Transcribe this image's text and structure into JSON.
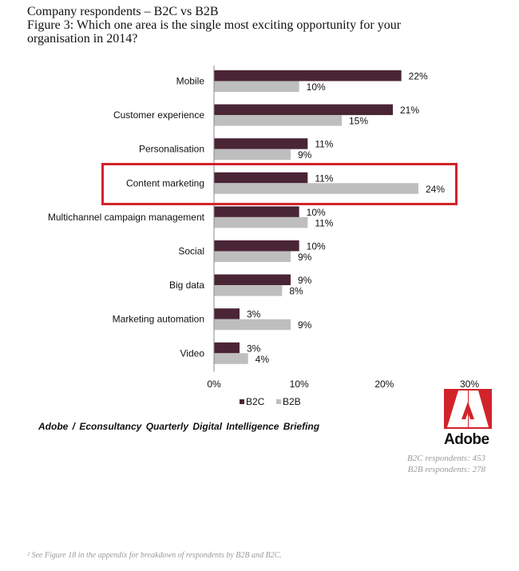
{
  "header": {
    "line1": "Company respondents – B2C vs B2B",
    "line2": "Figure 3: Which one area is the single most exciting opportunity for your",
    "line3": "organisation in 2014?"
  },
  "chart_data": {
    "type": "bar",
    "orientation": "horizontal",
    "categories": [
      "Mobile",
      "Customer experience",
      "Personalisation",
      "Content marketing",
      "Multichannel campaign management",
      "Social",
      "Big data",
      "Marketing automation",
      "Video"
    ],
    "series": [
      {
        "name": "B2C",
        "values": [
          22,
          21,
          11,
          11,
          10,
          10,
          9,
          3,
          3
        ],
        "color": "#4a2535"
      },
      {
        "name": "B2B",
        "values": [
          10,
          15,
          9,
          24,
          11,
          9,
          8,
          9,
          4
        ],
        "color": "#bebebe"
      }
    ],
    "value_suffix": "%",
    "xlim": [
      0,
      30
    ],
    "xticks": [
      0,
      10,
      20,
      30
    ],
    "xtick_labels": [
      "0%",
      "10%",
      "20%",
      "30%"
    ],
    "highlighted_category": "Content marketing",
    "highlight_color": "#d2232a",
    "legend_position": "bottom",
    "grid": false
  },
  "source": "Adobe / Econsultancy  Quarterly  Digital Intelligence  Briefing",
  "logo": {
    "word": "Adobe",
    "color": "#d2232a"
  },
  "respondents": {
    "b2c": "B2C respondents: 453",
    "b2b": "B2B respondents: 278"
  },
  "footnote": "² See Figure 18 in the appendix for breakdown of respondents by B2B and B2C."
}
